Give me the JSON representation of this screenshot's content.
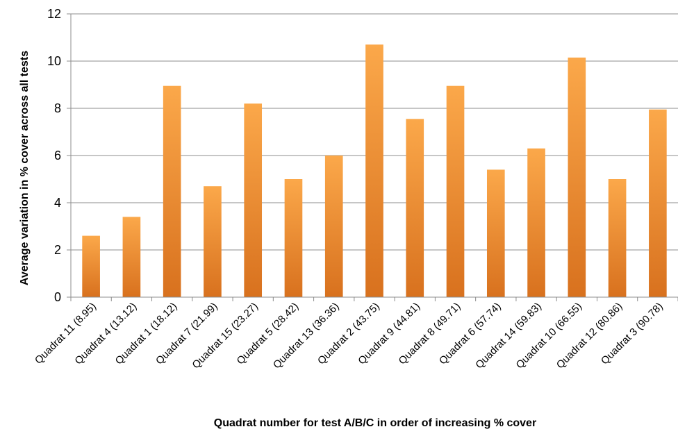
{
  "chart_data": {
    "type": "bar",
    "title": "",
    "xlabel": "Quadrat number for test A/B/C in order of increasing % cover",
    "ylabel": "Average variation in % cover across all tests",
    "ylim": [
      0,
      12
    ],
    "yticks": [
      "0",
      "2",
      "4",
      "6",
      "8",
      "10",
      "12"
    ],
    "grid": true,
    "legend": "none",
    "bar_color_light": "#fba84a",
    "bar_color_dark": "#d8711e",
    "categories": [
      "Quadrat 11 (8.95)",
      "Quadrat 4 (13.12)",
      "Quadrat 1 (18.12)",
      "Quadrat 7 (21.99)",
      "Quadrat 15 (23.27)",
      "Quadrat 5 (28.42)",
      "Quadrat 13 (36.36)",
      "Quadrat 2 (43.75)",
      "Quadrat 9 (44.81)",
      "Quadrat 8 (49.71)",
      "Quadrat 6 (57.74)",
      "Quadrat 14 (59.83)",
      "Quadrat 10 (66.55)",
      "Quadrat 12 (80.86)",
      "Quadrat 3 (90.78)"
    ],
    "values": [
      2.6,
      3.4,
      8.95,
      4.7,
      8.2,
      5.0,
      6.0,
      10.7,
      7.55,
      8.95,
      5.4,
      6.3,
      10.15,
      5.0,
      7.95
    ]
  }
}
